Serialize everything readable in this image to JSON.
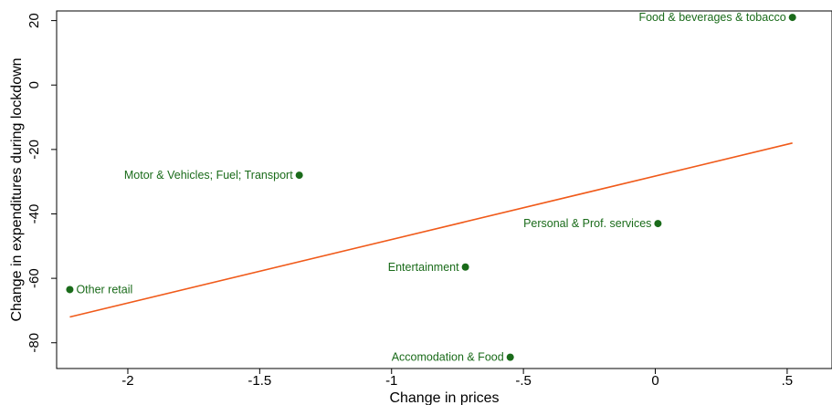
{
  "chart_data": {
    "type": "scatter",
    "title": "",
    "xlabel": "Change in prices",
    "ylabel": "Change in expenditures during lockdown",
    "xlim": [
      -2.27,
      0.67
    ],
    "ylim": [
      -88,
      23
    ],
    "xticks": [
      -2,
      -1.5,
      -1,
      -0.5,
      0,
      0.5
    ],
    "xtick_labels": [
      "-2",
      "-1.5",
      "-1",
      "-.5",
      "0",
      ".5"
    ],
    "yticks": [
      -80,
      -60,
      -40,
      -20,
      0,
      20
    ],
    "ytick_labels": [
      "-80",
      "-60",
      "-40",
      "-20",
      "0",
      "20"
    ],
    "grid": false,
    "points": [
      {
        "label": "Food & beverages & tobacco",
        "x": 0.52,
        "y": 21,
        "label_side": "left"
      },
      {
        "label": "Motor & Vehicles; Fuel; Transport",
        "x": -1.35,
        "y": -28,
        "label_side": "left"
      },
      {
        "label": "Personal & Prof. services",
        "x": 0.01,
        "y": -43,
        "label_side": "left"
      },
      {
        "label": "Entertainment",
        "x": -0.72,
        "y": -56.5,
        "label_side": "left"
      },
      {
        "label": "Other retail",
        "x": -2.22,
        "y": -63.5,
        "label_side": "right"
      },
      {
        "label": "Accomodation & Food",
        "x": -0.55,
        "y": -84.5,
        "label_side": "left"
      }
    ],
    "fit_line": {
      "x": [
        -2.22,
        0.52
      ],
      "y": [
        -72,
        -18
      ]
    },
    "colors": {
      "points": "#1a6b1a",
      "labels": "#1a6b1a",
      "fit_line": "#f05a1a",
      "axes": "#000000"
    }
  }
}
